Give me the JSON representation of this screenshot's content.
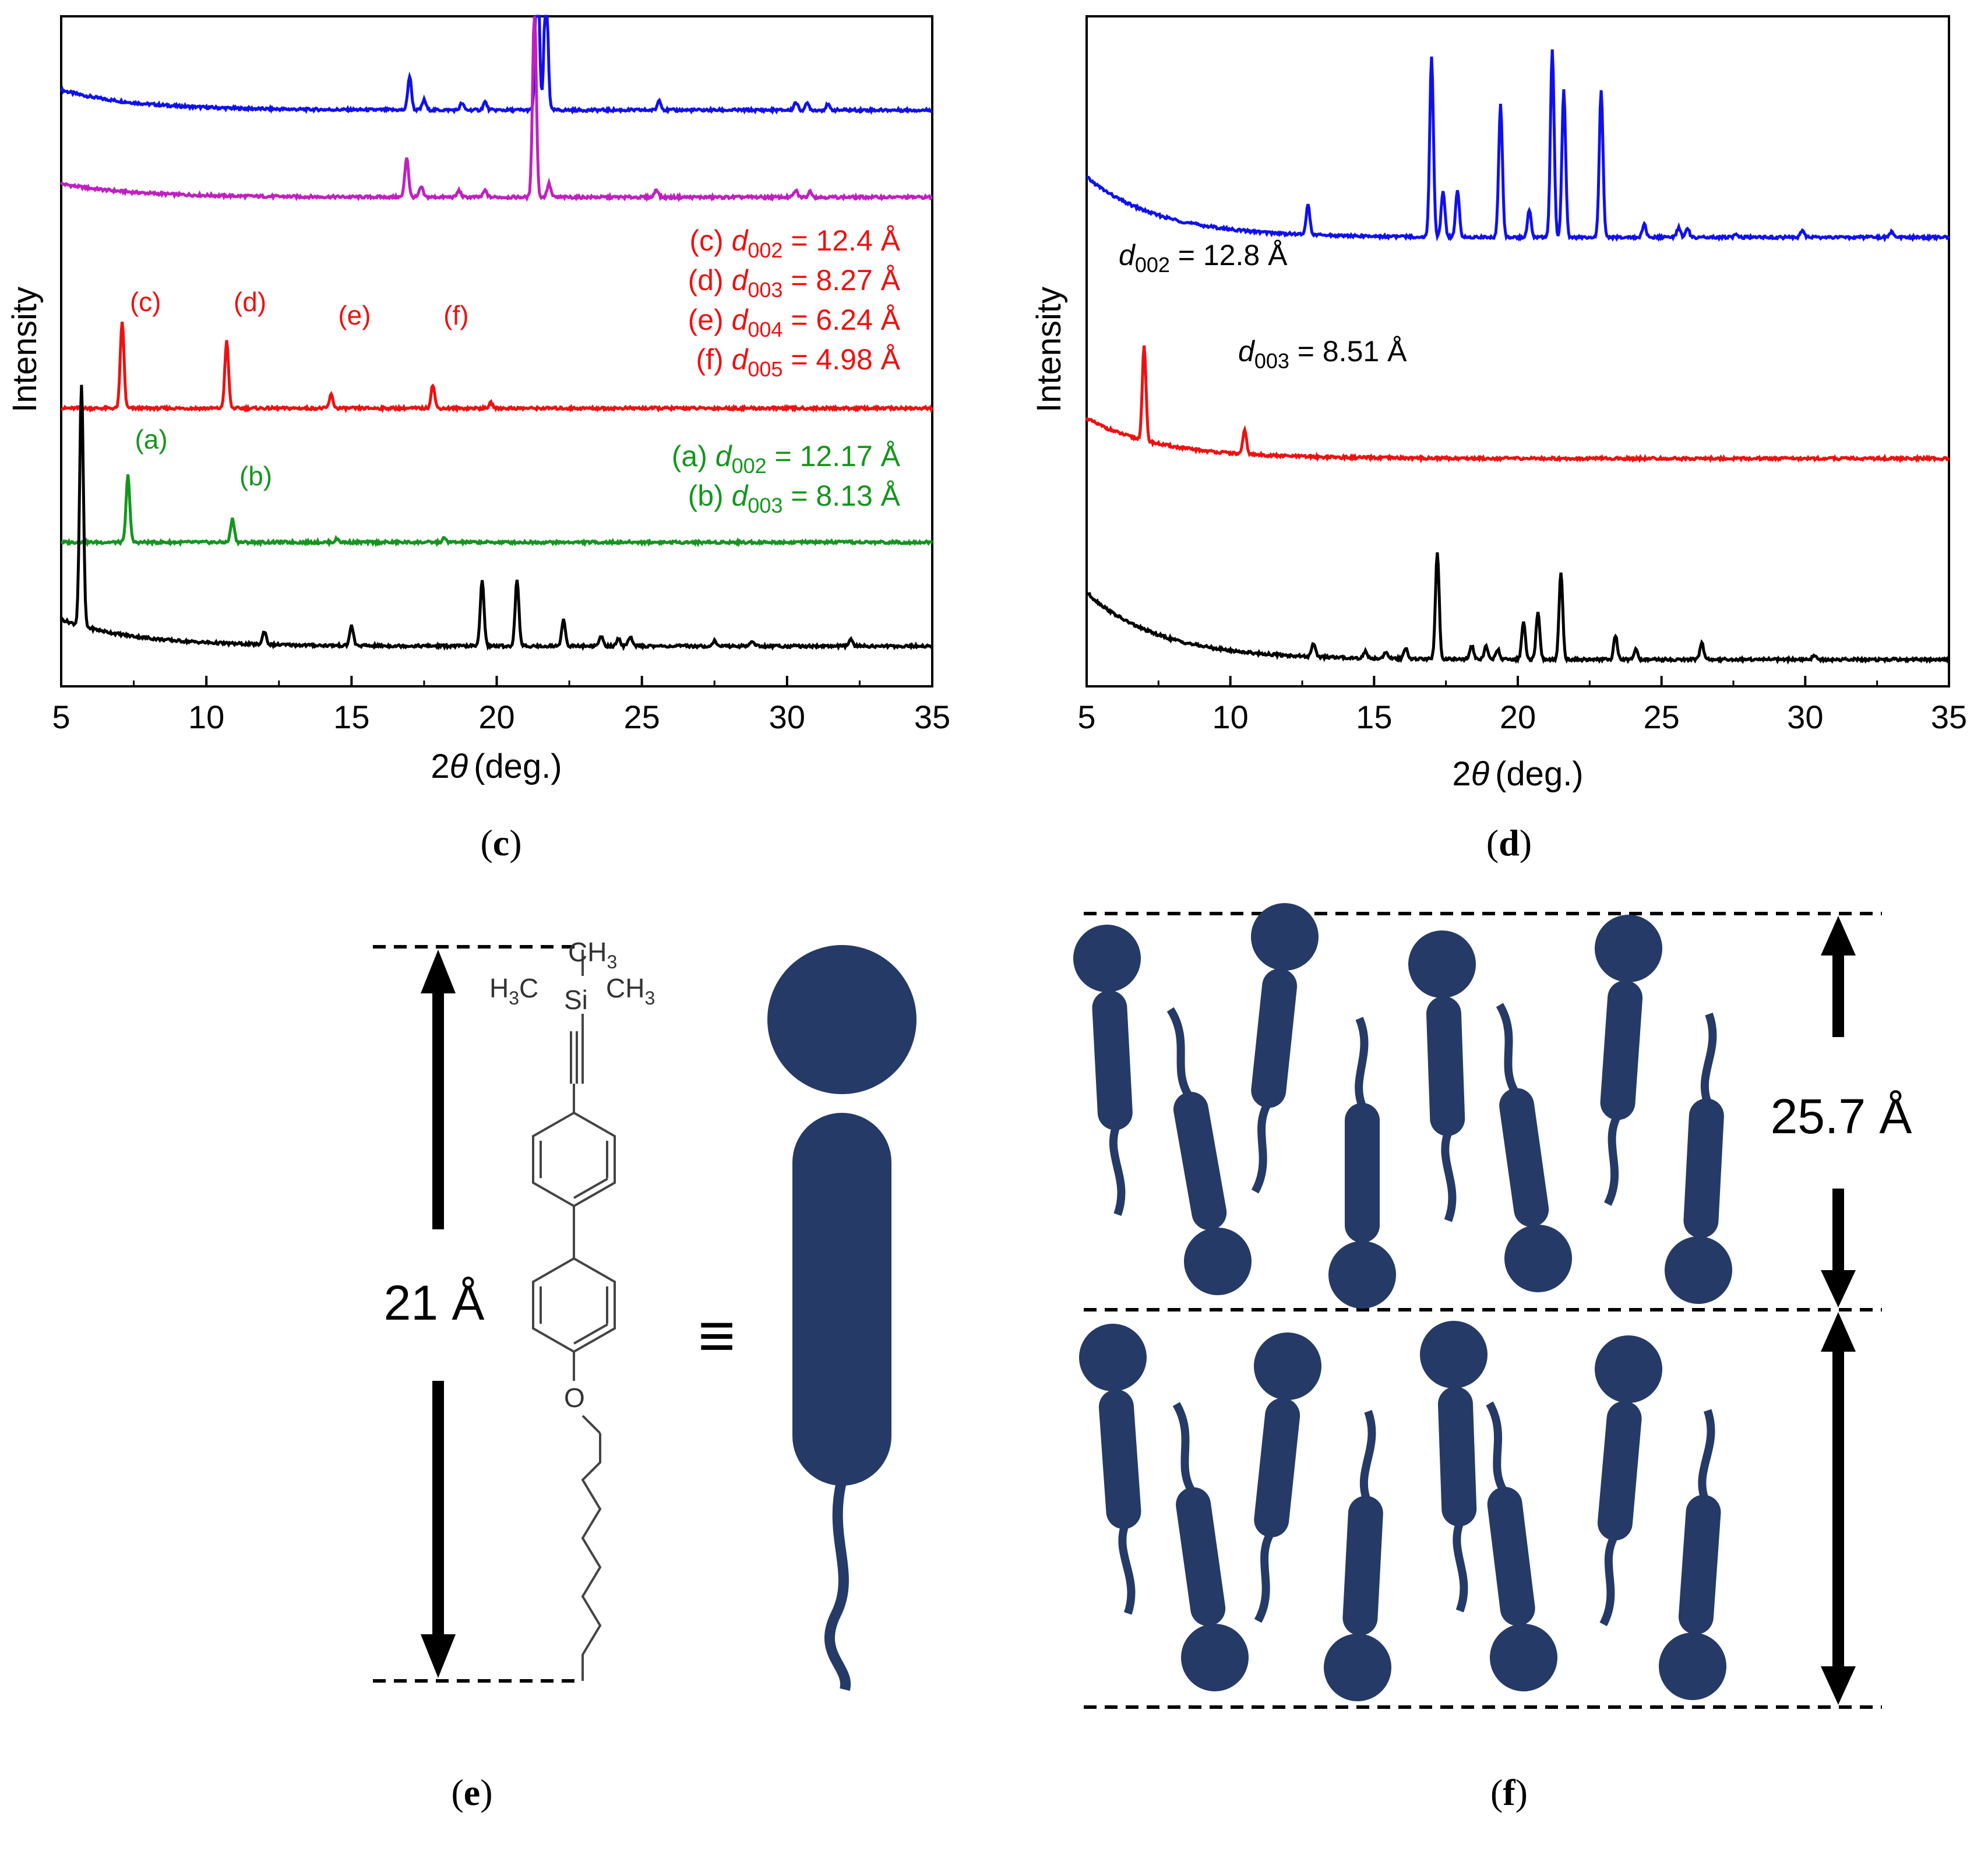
{
  "colors": {
    "blue": "#1010ee",
    "magenta": "#c020c0",
    "red": "#ee1111",
    "green": "#14961e",
    "black": "#000000",
    "navy": "#253a66"
  },
  "captions": {
    "c_open": "(",
    "c_letter": "c",
    "c_close": ")",
    "d_open": "(",
    "d_letter": "d",
    "d_close": ")",
    "e_open": "(",
    "e_letter": "e",
    "e_close": ")",
    "f_open": "(",
    "f_letter": "f",
    "f_close": ")"
  },
  "chart_data": [
    {
      "panel": "c",
      "type": "line",
      "xlabel_theta": "θ",
      "xlabel_pre": "2",
      "xlabel_post": "(deg.)",
      "ylabel": "Intensity",
      "xlim": [
        5,
        35
      ],
      "xticks": [
        "5",
        "10",
        "15",
        "20",
        "25",
        "30",
        "35"
      ],
      "yticks_shown": false,
      "series": [
        {
          "name": "blue",
          "color": "#1010ee",
          "offset": 0.86,
          "peaks": [
            [
              17.0,
              0.05
            ],
            [
              17.5,
              0.015
            ],
            [
              18.8,
              0.01
            ],
            [
              19.6,
              0.012
            ],
            [
              21.4,
              0.24
            ],
            [
              21.7,
              0.2
            ],
            [
              25.6,
              0.015
            ],
            [
              30.3,
              0.012
            ],
            [
              30.7,
              0.01
            ],
            [
              31.4,
              0.008
            ]
          ],
          "start_hump": 0.03
        },
        {
          "name": "magenta",
          "color": "#c020c0",
          "offset": 0.73,
          "peaks": [
            [
              16.9,
              0.06
            ],
            [
              17.4,
              0.015
            ],
            [
              18.7,
              0.01
            ],
            [
              19.6,
              0.01
            ],
            [
              21.3,
              0.28
            ],
            [
              21.8,
              0.02
            ],
            [
              25.5,
              0.012
            ],
            [
              30.3,
              0.01
            ],
            [
              30.8,
              0.009
            ]
          ],
          "start_hump": 0.02
        },
        {
          "name": "red",
          "color": "#ee1111",
          "offset": 0.415,
          "peaks": [
            [
              7.1,
              0.13
            ],
            [
              10.7,
              0.1
            ],
            [
              14.3,
              0.02
            ],
            [
              17.8,
              0.035
            ],
            [
              19.8,
              0.008
            ]
          ],
          "start_hump": 0.0
        },
        {
          "name": "green",
          "color": "#14961e",
          "offset": 0.215,
          "peaks": [
            [
              7.3,
              0.1
            ],
            [
              10.9,
              0.035
            ],
            [
              14.5,
              0.005
            ],
            [
              18.2,
              0.006
            ]
          ],
          "start_hump": 0.0
        },
        {
          "name": "black",
          "color": "#000000",
          "offset": 0.06,
          "peaks": [
            [
              5.7,
              0.36
            ],
            [
              12.0,
              0.02
            ],
            [
              15.0,
              0.03
            ],
            [
              19.5,
              0.1
            ],
            [
              20.7,
              0.1
            ],
            [
              22.3,
              0.04
            ],
            [
              23.6,
              0.015
            ],
            [
              24.2,
              0.012
            ],
            [
              24.6,
              0.015
            ],
            [
              27.5,
              0.008
            ],
            [
              28.8,
              0.008
            ],
            [
              32.2,
              0.01
            ]
          ],
          "start_hump": 0.04
        }
      ],
      "peak_labels": [
        {
          "text": "(c)",
          "color": "#ee1111",
          "x": 7.1,
          "y": 0.56
        },
        {
          "text": "(d)",
          "color": "#ee1111",
          "x": 10.7,
          "y": 0.56
        },
        {
          "text": "(e)",
          "color": "#ee1111",
          "x": 14.3,
          "y": 0.54
        },
        {
          "text": "(f)",
          "color": "#ee1111",
          "x": 17.8,
          "y": 0.54
        },
        {
          "text": "(a)",
          "color": "#14961e",
          "x": 7.3,
          "y": 0.355
        },
        {
          "text": "(b)",
          "color": "#14961e",
          "x": 10.9,
          "y": 0.3
        }
      ],
      "annotations": [
        {
          "pre": "(c) ",
          "d": "d",
          "sub": "002",
          "post": " = 12.4 Å",
          "color": "#ee1111"
        },
        {
          "pre": "(d) ",
          "d": "d",
          "sub": "003",
          "post": " = 8.27 Å",
          "color": "#ee1111"
        },
        {
          "pre": "(e) ",
          "d": "d",
          "sub": "004",
          "post": " = 6.24 Å",
          "color": "#ee1111"
        },
        {
          "pre": "(f) ",
          "d": "d",
          "sub": "005",
          "post": " = 4.98 Å",
          "color": "#ee1111"
        },
        {
          "pre": "(a) ",
          "d": "d",
          "sub": "002",
          "post": " = 12.17 Å",
          "color": "#14961e"
        },
        {
          "pre": "(b) ",
          "d": "d",
          "sub": "003",
          "post": " = 8.13 Å",
          "color": "#14961e"
        }
      ]
    },
    {
      "panel": "d",
      "type": "line",
      "xlabel_theta": "θ",
      "xlabel_pre": "2",
      "xlabel_post": "(deg.)",
      "ylabel": "Intensity",
      "xlim": [
        5,
        35
      ],
      "xticks": [
        "5",
        "10",
        "15",
        "20",
        "25",
        "30",
        "35"
      ],
      "yticks_shown": false,
      "series": [
        {
          "name": "blue",
          "color": "#1010ee",
          "offset": 0.67,
          "peaks": [
            [
              12.7,
              0.045
            ],
            [
              17.0,
              0.27
            ],
            [
              17.4,
              0.07
            ],
            [
              17.9,
              0.07
            ],
            [
              19.4,
              0.2
            ],
            [
              20.4,
              0.04
            ],
            [
              21.2,
              0.28
            ],
            [
              21.6,
              0.22
            ],
            [
              22.9,
              0.22
            ],
            [
              24.4,
              0.02
            ],
            [
              25.6,
              0.015
            ],
            [
              25.9,
              0.015
            ],
            [
              27.6,
              0.005
            ],
            [
              29.9,
              0.01
            ],
            [
              33.0,
              0.008
            ]
          ],
          "start_hump": 0.09
        },
        {
          "name": "red",
          "color": "#ee1111",
          "offset": 0.34,
          "peaks": [
            [
              7.0,
              0.14
            ],
            [
              10.5,
              0.035
            ]
          ],
          "start_hump": 0.06
        },
        {
          "name": "black",
          "color": "#000000",
          "offset": 0.04,
          "peaks": [
            [
              12.9,
              0.02
            ],
            [
              14.7,
              0.01
            ],
            [
              15.4,
              0.01
            ],
            [
              16.1,
              0.015
            ],
            [
              17.2,
              0.16
            ],
            [
              18.4,
              0.02
            ],
            [
              18.9,
              0.02
            ],
            [
              19.3,
              0.015
            ],
            [
              20.2,
              0.055
            ],
            [
              20.7,
              0.07
            ],
            [
              21.5,
              0.13
            ],
            [
              23.4,
              0.035
            ],
            [
              24.1,
              0.015
            ],
            [
              26.4,
              0.025
            ],
            [
              30.3,
              0.006
            ]
          ],
          "start_hump": 0.1
        }
      ],
      "annotations": [
        {
          "pre": "",
          "d": "d",
          "sub": "002",
          "post": " = 12.8 Å",
          "color": "#000000"
        },
        {
          "pre": "",
          "d": "d",
          "sub": "003",
          "post": " = 8.51 Å",
          "color": "#000000"
        }
      ]
    }
  ],
  "panel_e": {
    "length_label": "21 Å",
    "equiv_symbol": "≡",
    "ch3_top": "CH",
    "ch3_top_sub": "3",
    "h3c_left_pre": "H",
    "h3c_left_sub": "3",
    "h3c_left_post": "C",
    "ch3_right": "CH",
    "ch3_right_sub": "3",
    "si": "Si",
    "oxygen": "O"
  },
  "panel_f": {
    "length_label": "25.7 Å"
  }
}
